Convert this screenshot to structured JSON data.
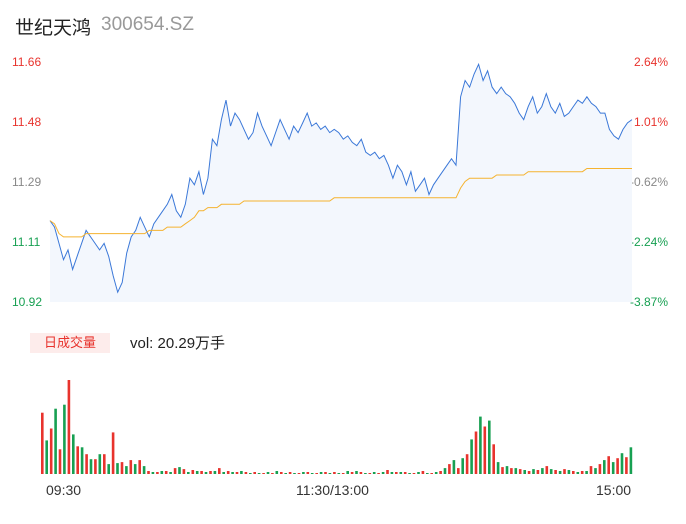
{
  "header": {
    "name": "世纪天鸿",
    "code": "300654.SZ"
  },
  "volume": {
    "badge": "日成交量",
    "text": "vol: 20.29万手"
  },
  "colors": {
    "price": "#3b78d8",
    "avg": "#f5b330",
    "up": "#e8332d",
    "down": "#17a052",
    "area": "#f3f7fd"
  },
  "chart_data": {
    "type": "line",
    "title": "",
    "y_ticks_left": [
      "11.66",
      "11.48",
      "11.29",
      "11.11",
      "10.92"
    ],
    "y_ticks_right": [
      "2.64%",
      "1.01%",
      "-0.62%",
      "-2.24%",
      "-3.87%"
    ],
    "x_ticks": [
      "09:30",
      "11:30/13:00",
      "15:00"
    ],
    "ylim": [
      10.92,
      11.66
    ],
    "prev_close": 11.36,
    "price": [
      11.17,
      11.15,
      11.1,
      11.05,
      11.08,
      11.02,
      11.06,
      11.1,
      11.14,
      11.12,
      11.1,
      11.08,
      11.1,
      11.06,
      11.0,
      10.95,
      10.98,
      11.07,
      11.12,
      11.14,
      11.18,
      11.15,
      11.12,
      11.16,
      11.18,
      11.2,
      11.22,
      11.25,
      11.2,
      11.18,
      11.22,
      11.3,
      11.28,
      11.32,
      11.25,
      11.3,
      11.42,
      11.4,
      11.48,
      11.54,
      11.46,
      11.5,
      11.48,
      11.45,
      11.42,
      11.44,
      11.5,
      11.46,
      11.43,
      11.4,
      11.44,
      11.48,
      11.45,
      11.42,
      11.46,
      11.44,
      11.47,
      11.5,
      11.46,
      11.47,
      11.45,
      11.46,
      11.44,
      11.45,
      11.44,
      11.42,
      11.43,
      11.41,
      11.4,
      11.42,
      11.38,
      11.37,
      11.38,
      11.36,
      11.37,
      11.34,
      11.3,
      11.34,
      11.32,
      11.28,
      11.32,
      11.26,
      11.28,
      11.3,
      11.25,
      11.28,
      11.3,
      11.32,
      11.34,
      11.36,
      11.34,
      11.55,
      11.6,
      11.58,
      11.62,
      11.65,
      11.6,
      11.63,
      11.58,
      11.56,
      11.58,
      11.56,
      11.55,
      11.53,
      11.5,
      11.48,
      11.52,
      11.55,
      11.5,
      11.52,
      11.56,
      11.52,
      11.5,
      11.53,
      11.49,
      11.5,
      11.52,
      11.54,
      11.53,
      11.55,
      11.53,
      11.52,
      11.5,
      11.5,
      11.45,
      11.43,
      11.42,
      11.45,
      11.47,
      11.48
    ],
    "avg": [
      11.17,
      11.16,
      11.13,
      11.12,
      11.12,
      11.12,
      11.12,
      11.12,
      11.13,
      11.13,
      11.13,
      11.13,
      11.13,
      11.13,
      11.13,
      11.13,
      11.13,
      11.13,
      11.13,
      11.13,
      11.13,
      11.13,
      11.14,
      11.14,
      11.14,
      11.14,
      11.15,
      11.15,
      11.15,
      11.15,
      11.16,
      11.17,
      11.18,
      11.2,
      11.2,
      11.21,
      11.21,
      11.21,
      11.22,
      11.22,
      11.22,
      11.22,
      11.22,
      11.23,
      11.23,
      11.23,
      11.23,
      11.23,
      11.23,
      11.23,
      11.23,
      11.23,
      11.23,
      11.23,
      11.23,
      11.23,
      11.23,
      11.23,
      11.23,
      11.23,
      11.23,
      11.23,
      11.23,
      11.24,
      11.24,
      11.24,
      11.24,
      11.24,
      11.24,
      11.24,
      11.24,
      11.24,
      11.24,
      11.24,
      11.24,
      11.24,
      11.24,
      11.24,
      11.24,
      11.24,
      11.24,
      11.24,
      11.24,
      11.24,
      11.24,
      11.24,
      11.24,
      11.24,
      11.24,
      11.24,
      11.24,
      11.27,
      11.29,
      11.3,
      11.3,
      11.3,
      11.3,
      11.3,
      11.3,
      11.31,
      11.31,
      11.31,
      11.31,
      11.31,
      11.31,
      11.31,
      11.32,
      11.32,
      11.32,
      11.32,
      11.32,
      11.32,
      11.32,
      11.32,
      11.32,
      11.32,
      11.32,
      11.32,
      11.32,
      11.33,
      11.33,
      11.33,
      11.33,
      11.33,
      11.33,
      11.33,
      11.33,
      11.33,
      11.33,
      11.33
    ],
    "volume_values": [
      62,
      34,
      46,
      66,
      25,
      70,
      95,
      40,
      28,
      27,
      20,
      15,
      15,
      20,
      20,
      10,
      42,
      11,
      12,
      8,
      14,
      10,
      14,
      8,
      3,
      2,
      2,
      3,
      3,
      2,
      6,
      7,
      5,
      2,
      4,
      3,
      3,
      2,
      3,
      3,
      6,
      2,
      3,
      2,
      2,
      3,
      2,
      1,
      2,
      1,
      1,
      2,
      1,
      3,
      2,
      1,
      2,
      1,
      1,
      2,
      2,
      1,
      1,
      2,
      2,
      1,
      2,
      1,
      1,
      3,
      2,
      3,
      2,
      1,
      1,
      2,
      1,
      2,
      4,
      2,
      2,
      2,
      2,
      1,
      1,
      2,
      3,
      1,
      1,
      2,
      3,
      6,
      10,
      14,
      6,
      16,
      20,
      35,
      43,
      58,
      48,
      54,
      30,
      12,
      7,
      8,
      6,
      6,
      5,
      4,
      3,
      5,
      4,
      6,
      8,
      5,
      4,
      3,
      5,
      4,
      3,
      2,
      3,
      3,
      8,
      6,
      10,
      14,
      18,
      12,
      16,
      21,
      17,
      27
    ],
    "volume_up": [
      true,
      false,
      true,
      false,
      true,
      false,
      true,
      false,
      true,
      false,
      true,
      false,
      true,
      false,
      true,
      false,
      true,
      false,
      true,
      false,
      true,
      false,
      true,
      false,
      true,
      false,
      true,
      false,
      true,
      false,
      true,
      false,
      true,
      false,
      true,
      false,
      true,
      false,
      true,
      false,
      true,
      false,
      true,
      false,
      true,
      false,
      true,
      false,
      true,
      false,
      true,
      false,
      true,
      false,
      true,
      false,
      true,
      false,
      true,
      false,
      true,
      false,
      true,
      false,
      true,
      false,
      true,
      false,
      true,
      false,
      true,
      false,
      true,
      false,
      true,
      false,
      true,
      false,
      true,
      false,
      true,
      false,
      true,
      false,
      true,
      false,
      true,
      false,
      true,
      false,
      true,
      false,
      true,
      false,
      true,
      false,
      true,
      false,
      true,
      false,
      true,
      false,
      true,
      false,
      true,
      false,
      true,
      false,
      true,
      false,
      true,
      false,
      true,
      false,
      true,
      false,
      true,
      false,
      true,
      false,
      true,
      false,
      true,
      false,
      true,
      false,
      true,
      false,
      true,
      false,
      true,
      false,
      true,
      false
    ]
  }
}
